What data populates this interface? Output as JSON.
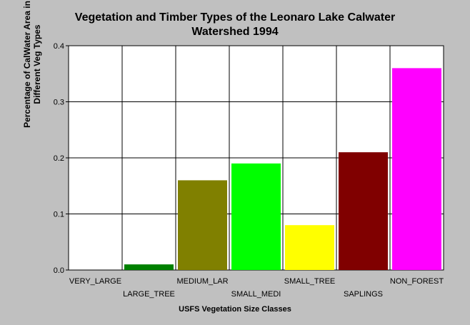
{
  "chart_data": {
    "type": "bar",
    "title_line1": "Vegetation and Timber Types of the Leonaro Lake Calwater",
    "title_line2": "Watershed 1994",
    "ylabel_line1": "Percentage of CalWater Area in",
    "ylabel_line2": "Different Veg Types",
    "xlabel": "USFS Vegetation Size Classes",
    "categories": [
      "VERY_LARGE",
      "LARGE_TREE",
      "MEDIUM_LAR",
      "SMALL_MEDI",
      "SMALL_TREE",
      "SAPLINGS",
      "NON_FOREST"
    ],
    "values": [
      0.0,
      0.01,
      0.16,
      0.19,
      0.08,
      0.21,
      0.36
    ],
    "colors": [
      "#008000",
      "#008000",
      "#808000",
      "#00ff00",
      "#ffff00",
      "#800000",
      "#ff00ff"
    ],
    "ylim": [
      0,
      0.4
    ],
    "yticks": [
      "0.0",
      "0.1",
      "0.2",
      "0.3",
      "0.4"
    ],
    "grid": true
  }
}
